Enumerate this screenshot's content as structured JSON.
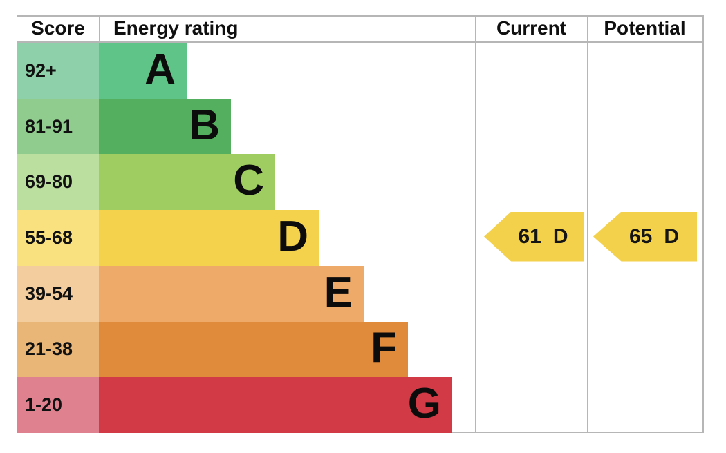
{
  "header": {
    "score": "Score",
    "rating": "Energy rating",
    "current": "Current",
    "potential": "Potential"
  },
  "bands": [
    {
      "letter": "A",
      "range": "92+",
      "color": "#5ec487",
      "score_color": "#8ed0aa"
    },
    {
      "letter": "B",
      "range": "81-91",
      "color": "#54b05e",
      "score_color": "#91cc8f"
    },
    {
      "letter": "C",
      "range": "69-80",
      "color": "#a0cd62",
      "score_color": "#badf9f"
    },
    {
      "letter": "D",
      "range": "55-68",
      "color": "#f4d24b",
      "score_color": "#f8e17e"
    },
    {
      "letter": "E",
      "range": "39-54",
      "color": "#eeaa68",
      "score_color": "#f3cd9d"
    },
    {
      "letter": "F",
      "range": "21-38",
      "color": "#e08a3c",
      "score_color": "#eab678"
    },
    {
      "letter": "G",
      "range": "1-20",
      "color": "#d23b46",
      "score_color": "#e0818f"
    }
  ],
  "current": {
    "value": "61",
    "letter": "D",
    "color": "#f3d14b",
    "band_index": 3
  },
  "potential": {
    "value": "65",
    "letter": "D",
    "color": "#f3d14b",
    "band_index": 3
  },
  "chart_data": {
    "type": "bar",
    "title": "EPC energy efficiency rating chart",
    "categories": [
      "A",
      "B",
      "C",
      "D",
      "E",
      "F",
      "G"
    ],
    "band_score_ranges": [
      "92+",
      "81-91",
      "69-80",
      "55-68",
      "39-54",
      "21-38",
      "1-20"
    ],
    "columns": [
      "Score",
      "Energy rating",
      "Current",
      "Potential"
    ],
    "current_rating": {
      "value": 61,
      "band": "D"
    },
    "potential_rating": {
      "value": 65,
      "band": "D"
    },
    "band_colors": [
      "#5ec487",
      "#54b05e",
      "#a0cd62",
      "#f4d24b",
      "#eeaa68",
      "#e08a3c",
      "#d23b46"
    ],
    "arrow_color": "#f3d14b",
    "orientation": "horizontal",
    "grid": false,
    "legend_position": "none"
  }
}
